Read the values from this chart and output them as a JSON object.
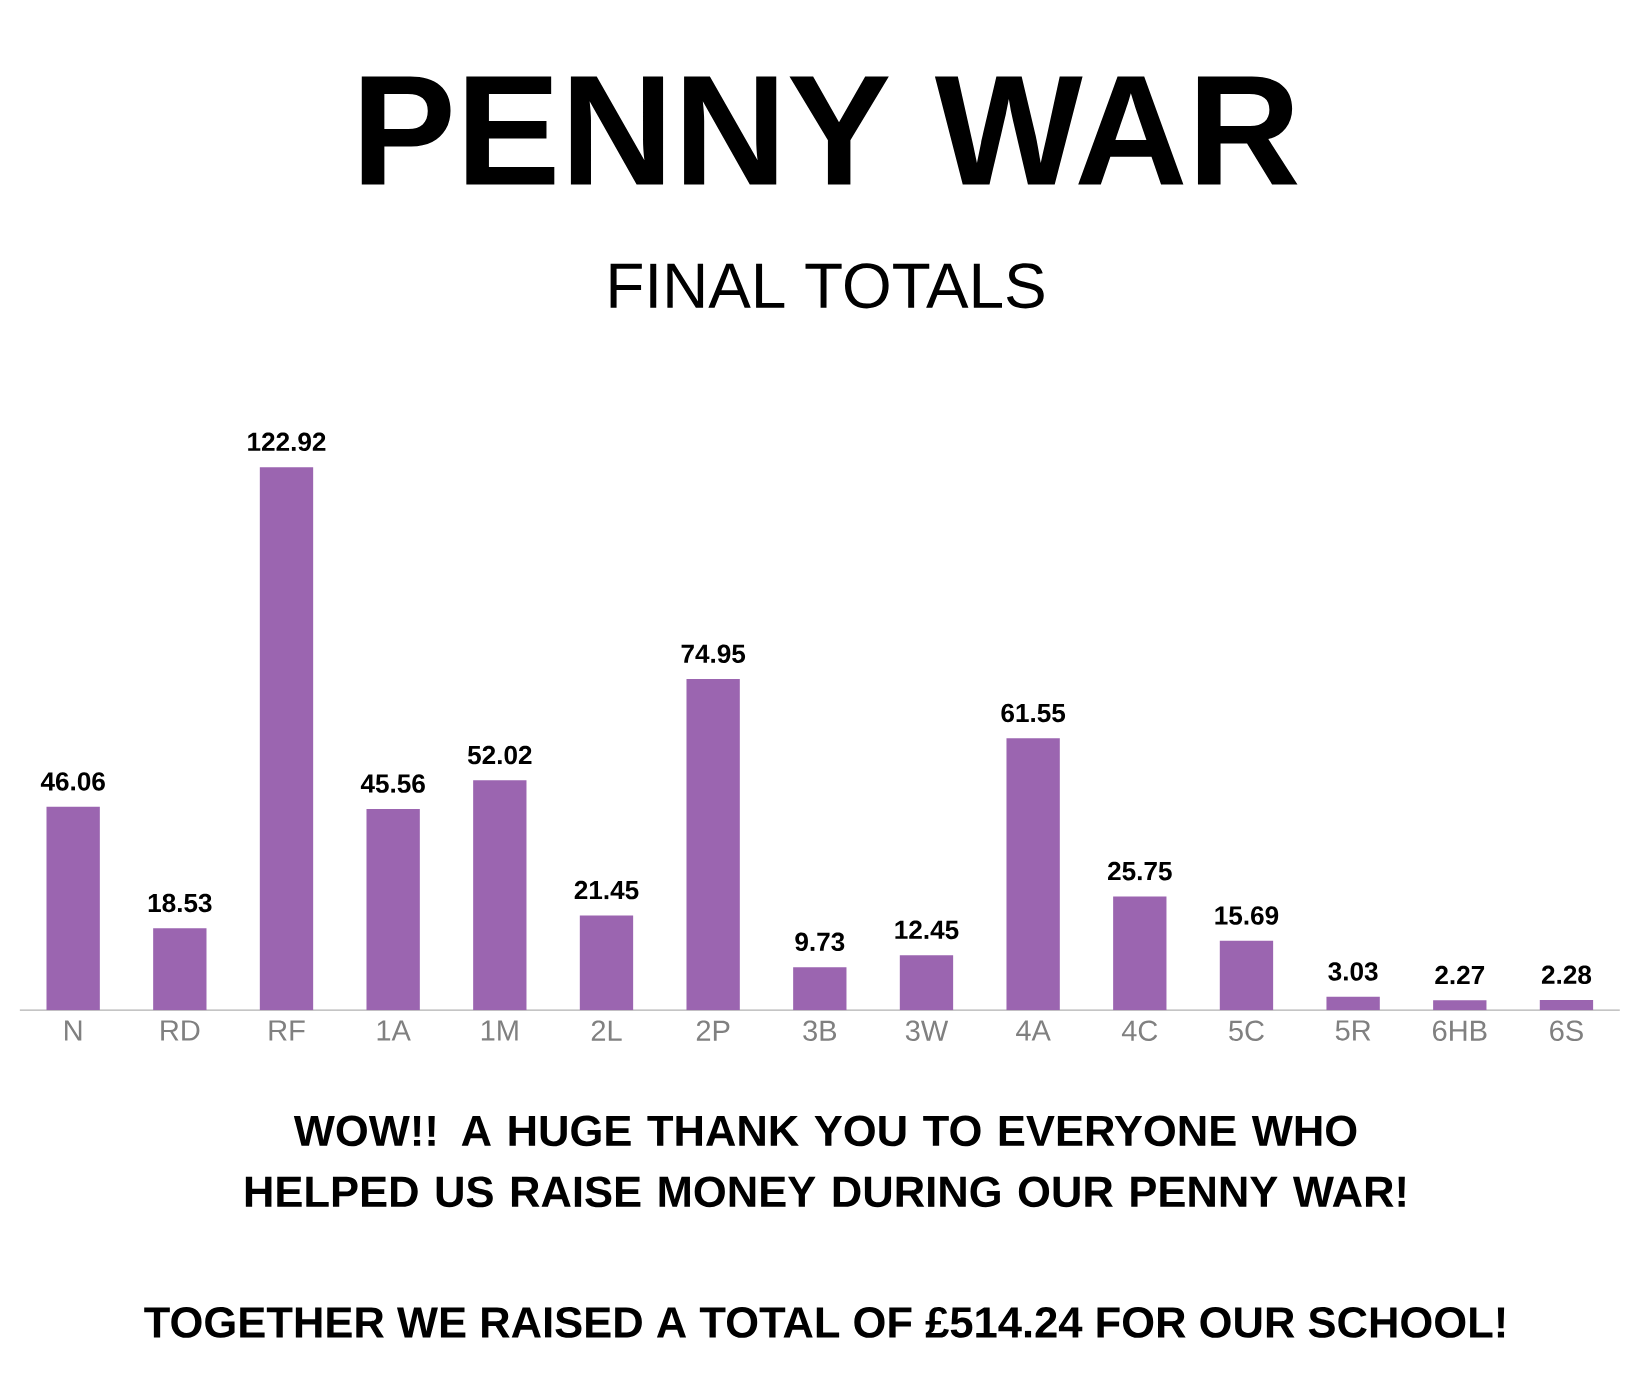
{
  "chart_data": {
    "type": "bar",
    "title": "PENNY WAR",
    "subtitle": "FINAL TOTALS",
    "categories": [
      "N",
      "RD",
      "RF",
      "1A",
      "1M",
      "2L",
      "2P",
      "3B",
      "3W",
      "4A",
      "4C",
      "5C",
      "5R",
      "6HB",
      "6S"
    ],
    "values": [
      46.06,
      18.53,
      122.92,
      45.56,
      52.02,
      21.45,
      74.95,
      9.73,
      12.45,
      61.55,
      25.75,
      15.69,
      3.03,
      2.27,
      2.28
    ],
    "color": "#9b65b0",
    "data_labels": true,
    "tick_labels": "x",
    "annotations": [
      "WOW!! A HUGE THANK YOU TO EVERYONE WHO HELPED US RAISE MONEY DURING OUR PENNY WAR!",
      "TOGETHER WE RAISED A TOTAL OF £514.24 FOR OUR SCHOOL!"
    ]
  }
}
